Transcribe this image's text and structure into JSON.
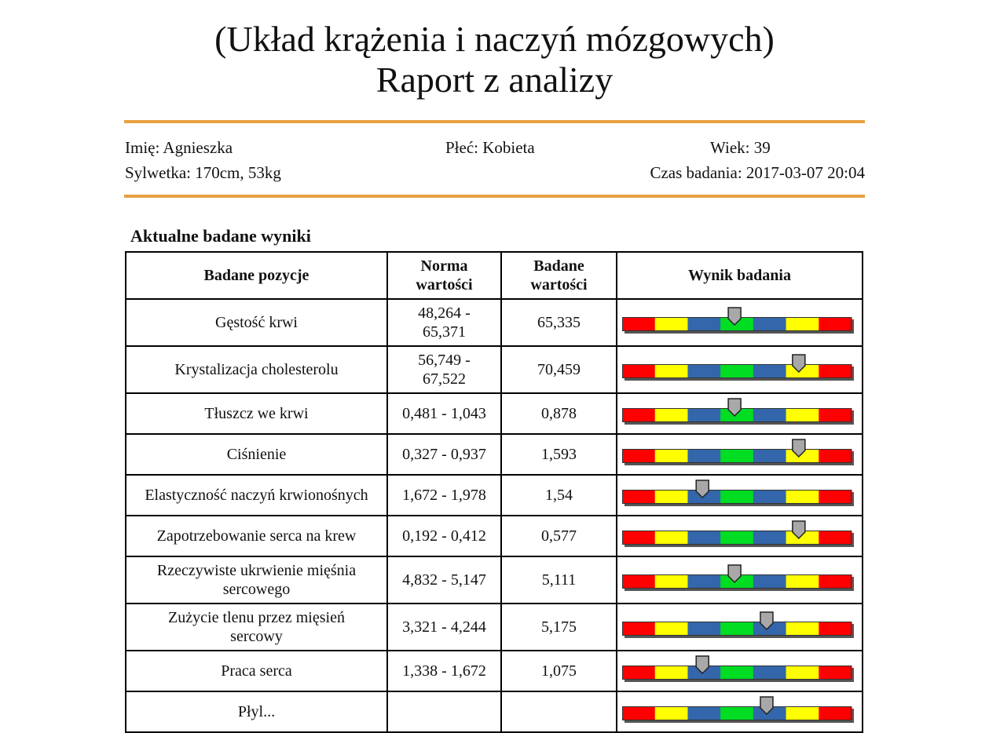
{
  "report": {
    "title_line1": "(Układ krążenia i naczyń mózgowych)",
    "title_line2": "Raport z analizy"
  },
  "patient": {
    "name": "Imię: Agnieszka",
    "sex": "Płeć: Kobieta",
    "age": "Wiek: 39",
    "figure": "Sylwetka: 170cm, 53kg",
    "exam_time": "Czas badania: 2017-03-07 20:04"
  },
  "section_title": "Aktualne badane wyniki",
  "table": {
    "headers": {
      "item": "Badane pozycje",
      "norm_line1": "Norma",
      "norm_line2": "wartości",
      "measured_line1": "Badane",
      "measured_line2": "wartości",
      "result": "Wynik badania"
    },
    "rows": [
      {
        "name_line1": "Gęstość krwi",
        "name_line2": "",
        "norm_line1": "48,264 -",
        "norm_line2": "65,371",
        "value": "65,335",
        "level": 0.49
      },
      {
        "name_line1": "Krystalizacja cholesterolu",
        "name_line2": "",
        "norm_line1": "56,749 -",
        "norm_line2": "67,522",
        "value": "70,459",
        "level": 0.77
      },
      {
        "name_line1": "Tłuszcz we krwi",
        "name_line2": "",
        "norm_line1": "0,481 - 1,043",
        "norm_line2": "",
        "value": "0,878",
        "level": 0.49
      },
      {
        "name_line1": "Ciśnienie",
        "name_line2": "",
        "norm_line1": "0,327 - 0,937",
        "norm_line2": "",
        "value": "1,593",
        "level": 0.77
      },
      {
        "name_line1": "Elastyczność naczyń krwionośnych",
        "name_line2": "",
        "norm_line1": "1,672 - 1,978",
        "norm_line2": "",
        "value": "1,54",
        "level": 0.35
      },
      {
        "name_line1": "Zapotrzebowanie serca na krew",
        "name_line2": "",
        "norm_line1": "0,192 - 0,412",
        "norm_line2": "",
        "value": "0,577",
        "level": 0.77
      },
      {
        "name_line1": "Rzeczywiste ukrwienie mięśnia",
        "name_line2": "sercowego",
        "norm_line1": "4,832 - 5,147",
        "norm_line2": "",
        "value": "5,111",
        "level": 0.49
      },
      {
        "name_line1": "Zużycie tlenu przez mięsień",
        "name_line2": "sercowy",
        "norm_line1": "3,321 - 4,244",
        "norm_line2": "",
        "value": "5,175",
        "level": 0.63
      },
      {
        "name_line1": "Praca serca",
        "name_line2": "",
        "norm_line1": "1,338 - 1,672",
        "norm_line2": "",
        "value": "1,075",
        "level": 0.35
      },
      {
        "name_line1": "Płyl...",
        "name_line2": "",
        "norm_line1": "",
        "norm_line2": "",
        "value": "",
        "level": 0.63
      }
    ]
  },
  "gauge_colors": {
    "red": "#ff0000",
    "yellow": "#ffff00",
    "blue": "#3366aa",
    "green": "#00dd22",
    "pointer": "#a8a8a8"
  }
}
